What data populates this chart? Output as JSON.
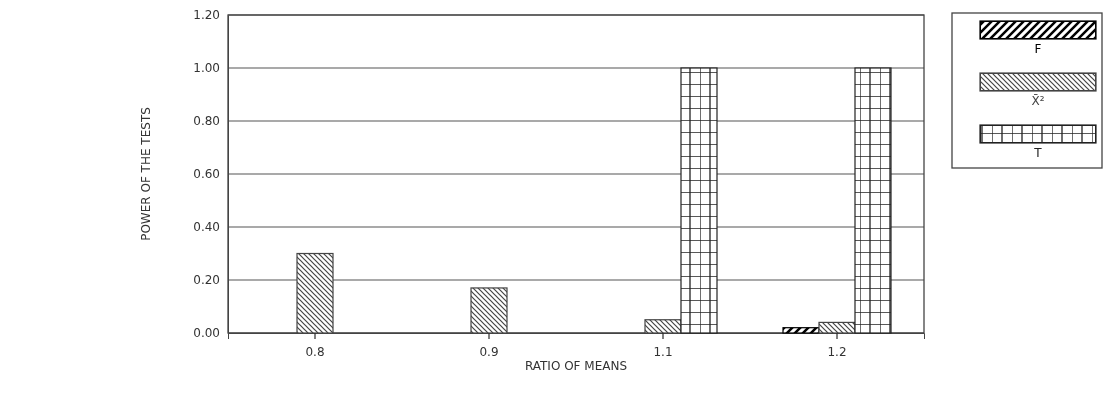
{
  "chart_data": {
    "type": "bar",
    "xlabel": "RATIO OF MEANS",
    "ylabel": "POWER OF THE TESTS",
    "categories": [
      "0.8",
      "0.9",
      "1.1",
      "1.2"
    ],
    "series": [
      {
        "name": "F",
        "color": "#000000",
        "values": [
          0,
          0,
          0,
          0.02
        ]
      },
      {
        "name": "X̄²",
        "color": "#444444",
        "values": [
          0.3,
          0.17,
          0.05,
          0.04
        ]
      },
      {
        "name": "T",
        "color": "#222222",
        "values": [
          0,
          0,
          1.0,
          1.0
        ]
      }
    ],
    "ylim": [
      0,
      1.2
    ],
    "yticks": [
      {
        "value": 0,
        "label": "0.00"
      },
      {
        "value": 0.2,
        "label": "0.20"
      },
      {
        "value": 0.4,
        "label": "0.40"
      },
      {
        "value": 0.6,
        "label": "0.60"
      },
      {
        "value": 0.8,
        "label": "0.80"
      },
      {
        "value": 1,
        "label": "1.00"
      },
      {
        "value": 1.2,
        "label": "1.20"
      }
    ],
    "grid": "y",
    "legend": "top right"
  }
}
